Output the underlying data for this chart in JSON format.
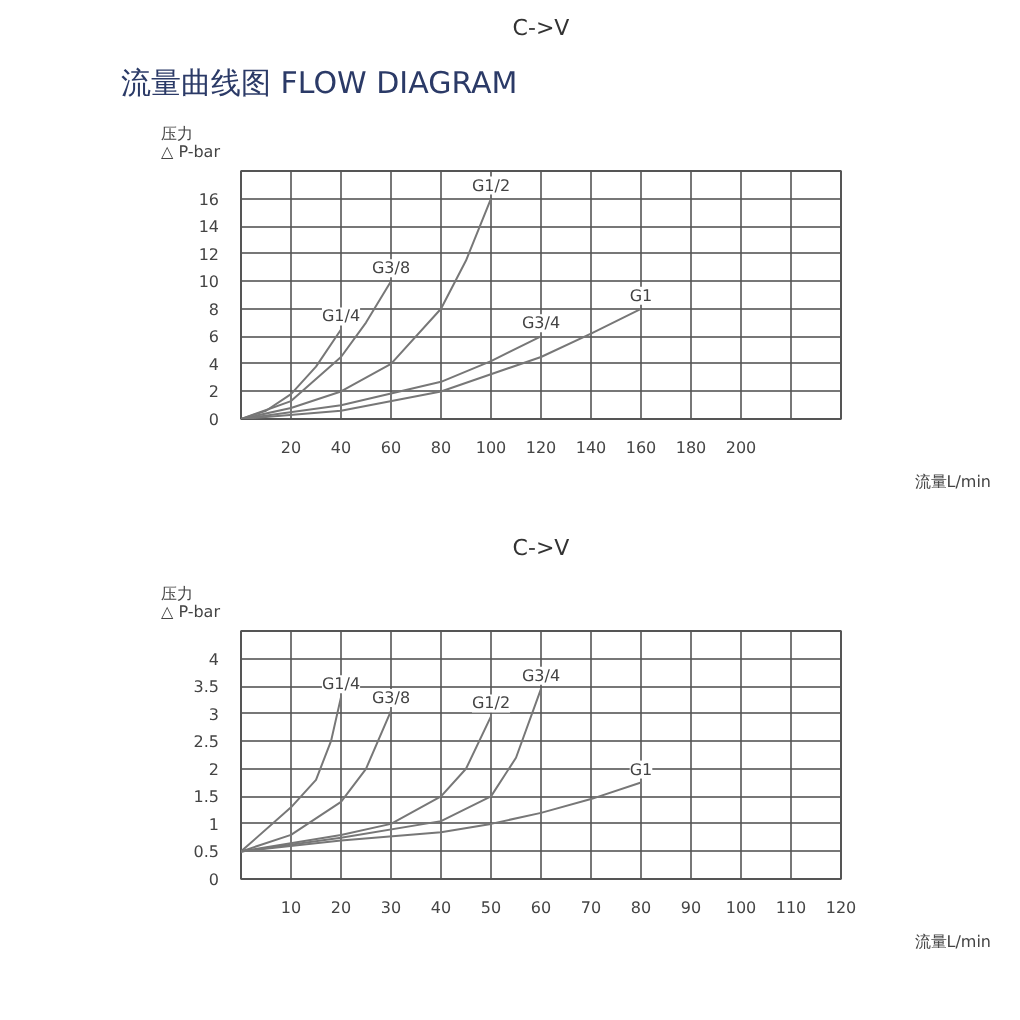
{
  "chart_data": [
    {
      "type": "line",
      "title": "C->V",
      "annotations": [
        "流量曲线图 FLOW DIAGRAM"
      ],
      "xlabel": "流量L/min",
      "ylabel": "压力\n△ P-bar",
      "grid": true,
      "marker": "none",
      "line_style": "solid",
      "xlim": [
        0,
        240
      ],
      "ylim": [
        0,
        18
      ],
      "xticks": [
        {
          "value": 0,
          "label": null
        },
        20,
        40,
        60,
        80,
        100,
        120,
        140,
        160,
        180,
        200,
        {
          "value": 220,
          "label": null
        },
        {
          "value": 240,
          "label": null
        }
      ],
      "yticks": [
        0,
        2,
        4,
        6,
        8,
        10,
        12,
        14,
        16,
        {
          "value": 18,
          "label": null
        }
      ],
      "series": [
        {
          "name": "G1/4",
          "color": "#777777",
          "x": [
            0,
            10,
            20,
            30,
            40
          ],
          "values": [
            0,
            0.6,
            1.8,
            3.8,
            6.5
          ]
        },
        {
          "name": "G3/8",
          "color": "#777777",
          "x": [
            0,
            20,
            40,
            50,
            60
          ],
          "values": [
            0,
            1.3,
            4.5,
            7,
            10
          ]
        },
        {
          "name": "G1/2",
          "color": "#777777",
          "x": [
            0,
            20,
            40,
            60,
            80,
            90,
            100
          ],
          "values": [
            0,
            0.8,
            2,
            4,
            8,
            11.5,
            16
          ]
        },
        {
          "name": "G3/4",
          "color": "#777777",
          "x": [
            0,
            40,
            80,
            100,
            120
          ],
          "values": [
            0,
            1,
            2.7,
            4.2,
            6
          ]
        },
        {
          "name": "G1",
          "color": "#777777",
          "x": [
            0,
            40,
            80,
            120,
            140,
            160
          ],
          "values": [
            0,
            0.6,
            2,
            4.5,
            6.2,
            8
          ]
        }
      ]
    },
    {
      "type": "line",
      "title": "C->V",
      "xlabel": "流量L/min",
      "ylabel": "压力\n△ P-bar",
      "grid": true,
      "marker": "none",
      "line_style": "solid",
      "xlim": [
        0,
        120
      ],
      "ylim": [
        0,
        4.5
      ],
      "xticks": [
        {
          "value": 0,
          "label": null
        },
        10,
        20,
        30,
        40,
        50,
        60,
        70,
        80,
        90,
        100,
        110,
        120
      ],
      "yticks": [
        0,
        0.5,
        1,
        1.5,
        2,
        2.5,
        3,
        3.5,
        4,
        {
          "value": 4.5,
          "label": null
        }
      ],
      "series": [
        {
          "name": "G1/4",
          "color": "#777777",
          "x": [
            0,
            10,
            15,
            18,
            20
          ],
          "values": [
            0.5,
            1.3,
            1.8,
            2.5,
            3.3
          ]
        },
        {
          "name": "G3/8",
          "color": "#777777",
          "x": [
            0,
            10,
            20,
            25,
            30
          ],
          "values": [
            0.5,
            0.8,
            1.4,
            2,
            3.05
          ]
        },
        {
          "name": "G1/2",
          "color": "#777777",
          "x": [
            0,
            20,
            30,
            40,
            45,
            50
          ],
          "values": [
            0.5,
            0.8,
            1,
            1.5,
            2,
            2.95
          ]
        },
        {
          "name": "G3/4",
          "color": "#777777",
          "x": [
            0,
            20,
            40,
            50,
            55,
            60
          ],
          "values": [
            0.5,
            0.75,
            1.05,
            1.5,
            2.2,
            3.45
          ]
        },
        {
          "name": "G1",
          "color": "#777777",
          "x": [
            0,
            20,
            40,
            50,
            60,
            70,
            80
          ],
          "values": [
            0.5,
            0.7,
            0.85,
            1,
            1.2,
            1.45,
            1.75
          ]
        }
      ]
    }
  ]
}
